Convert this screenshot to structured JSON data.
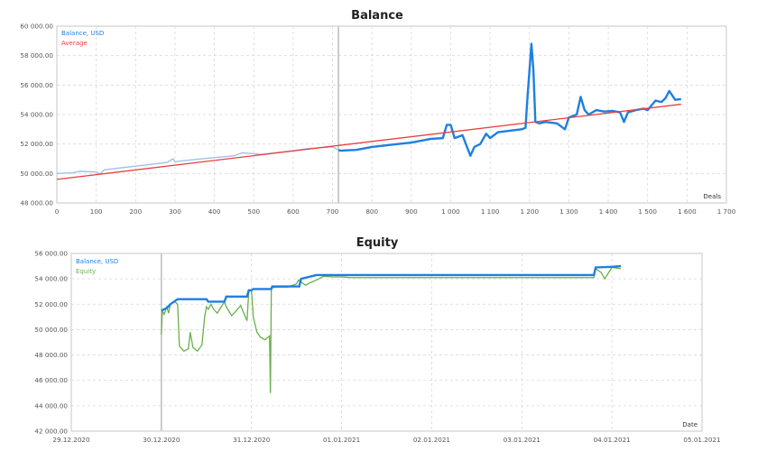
{
  "chart_data": [
    {
      "type": "line",
      "title": "Balance",
      "xlabel": "Deals",
      "ylabel": "",
      "xlim": [
        0,
        1700
      ],
      "ylim": [
        48000,
        60000
      ],
      "x_ticks": [
        "0",
        "100",
        "200",
        "300",
        "400",
        "500",
        "600",
        "700",
        "800",
        "900",
        "1 000",
        "1 100",
        "1 200",
        "1 300",
        "1 400",
        "1 500",
        "1 600",
        "1 700"
      ],
      "y_ticks": [
        "48 000.00",
        "50 000.00",
        "52 000.00",
        "54 000.00",
        "56 000.00",
        "58 000.00",
        "60 000.00"
      ],
      "grid": true,
      "legend": {
        "position": "top-left",
        "entries": [
          "Balance, USD",
          "Average"
        ]
      },
      "annotations": [
        "vertical separator at ~715 deals (in-sample / out-of-sample)"
      ],
      "series": [
        {
          "name": "Balance, USD",
          "color": "#1e7fe0",
          "x": [
            0,
            40,
            60,
            100,
            110,
            120,
            200,
            280,
            295,
            300,
            350,
            450,
            470,
            520,
            600,
            640,
            700,
            715,
            720,
            760,
            800,
            850,
            900,
            950,
            980,
            990,
            1000,
            1010,
            1030,
            1040,
            1050,
            1060,
            1075,
            1090,
            1100,
            1120,
            1150,
            1180,
            1190,
            1195,
            1200,
            1205,
            1210,
            1215,
            1225,
            1240,
            1270,
            1280,
            1290,
            1300,
            1320,
            1330,
            1340,
            1350,
            1370,
            1390,
            1410,
            1430,
            1440,
            1450,
            1470,
            1490,
            1500,
            1520,
            1535,
            1545,
            1555,
            1570,
            1585
          ],
          "y": [
            50000,
            50050,
            50150,
            50100,
            49950,
            50250,
            50500,
            50750,
            51000,
            50800,
            50950,
            51200,
            51400,
            51300,
            51550,
            51700,
            51800,
            51600,
            51550,
            51600,
            51800,
            51950,
            52100,
            52350,
            52400,
            53300,
            53300,
            52400,
            52600,
            51900,
            51200,
            51800,
            52000,
            52700,
            52400,
            52800,
            52900,
            53000,
            53100,
            55200,
            57000,
            58800,
            57000,
            53500,
            53400,
            53500,
            53400,
            53200,
            53000,
            53800,
            54000,
            55200,
            54300,
            54000,
            54300,
            54200,
            54250,
            54150,
            53500,
            54150,
            54300,
            54400,
            54300,
            54950,
            54850,
            55100,
            55600,
            55000,
            55050
          ]
        },
        {
          "name": "Average",
          "color": "#e84040",
          "x": [
            0,
            1585
          ],
          "y": [
            49600,
            54700
          ]
        }
      ]
    },
    {
      "type": "line",
      "title": "Equity",
      "xlabel": "Date",
      "ylabel": "",
      "x_ticks": [
        "29.12.2020",
        "30.12.2020",
        "31.12.2020",
        "01.01.2021",
        "02.01.2021",
        "03.01.2021",
        "04.01.2021",
        "05.01.2021"
      ],
      "xlim_days": [
        0,
        7
      ],
      "ylim": [
        42000,
        56000
      ],
      "y_ticks": [
        "42 000.00",
        "44 000.00",
        "46 000.00",
        "48 000.00",
        "50 000.00",
        "52 000.00",
        "54 000.00",
        "56 000.00"
      ],
      "grid": true,
      "legend": {
        "position": "top-left",
        "entries": [
          "Balance, USD",
          "Equity"
        ]
      },
      "series": [
        {
          "name": "Balance, USD",
          "color": "#1e7fe0",
          "x": [
            1.0,
            1.06,
            1.1,
            1.18,
            1.5,
            1.52,
            1.7,
            1.72,
            1.95,
            1.97,
            2.0,
            2.02,
            2.22,
            2.23,
            2.53,
            2.55,
            2.72,
            3.0,
            3.1,
            4.0,
            5.0,
            5.8,
            5.82,
            6.0,
            6.1
          ],
          "y": [
            51500,
            51700,
            52000,
            52400,
            52400,
            52200,
            52200,
            52600,
            52600,
            53100,
            53100,
            53200,
            53200,
            53400,
            53400,
            54000,
            54300,
            54300,
            54300,
            54300,
            54300,
            54300,
            54900,
            54950,
            55000
          ]
        },
        {
          "name": "Equity",
          "color": "#6ab04c",
          "x": [
            1.0,
            1.01,
            1.03,
            1.06,
            1.08,
            1.1,
            1.15,
            1.18,
            1.2,
            1.25,
            1.3,
            1.32,
            1.35,
            1.4,
            1.45,
            1.48,
            1.5,
            1.52,
            1.55,
            1.58,
            1.62,
            1.7,
            1.72,
            1.78,
            1.82,
            1.88,
            1.92,
            1.95,
            1.97,
            2.0,
            2.02,
            2.06,
            2.1,
            2.15,
            2.2,
            2.21,
            2.22,
            2.23,
            2.3,
            2.4,
            2.5,
            2.52,
            2.6,
            2.65,
            2.72,
            2.8,
            2.9,
            3.0,
            3.1,
            4.0,
            5.0,
            5.8,
            5.82,
            5.88,
            5.92,
            6.0,
            6.1
          ],
          "y": [
            49600,
            51500,
            51200,
            51800,
            51300,
            52000,
            52200,
            52000,
            48700,
            48300,
            48500,
            49800,
            48600,
            48300,
            48800,
            51000,
            51800,
            51600,
            52000,
            51600,
            51300,
            52200,
            51800,
            51100,
            51400,
            51900,
            51200,
            50700,
            53000,
            53100,
            51000,
            49800,
            49400,
            49200,
            49500,
            45000,
            53200,
            53300,
            53350,
            53350,
            53600,
            53900,
            53500,
            53700,
            53900,
            54200,
            54150,
            54150,
            54100,
            54100,
            54100,
            54100,
            54800,
            54500,
            54000,
            54900,
            54800
          ]
        }
      ],
      "annotations": [
        "vertical separator at 30.12.2020"
      ]
    }
  ],
  "balance_chart": {
    "title": "Balance",
    "xlabel": "Deals",
    "legend_balance": "Balance, USD",
    "legend_average": "Average"
  },
  "equity_chart": {
    "title": "Equity",
    "xlabel": "Date",
    "legend_balance": "Balance, USD",
    "legend_equity": "Equity"
  },
  "colors": {
    "balance": "#1e7fe0",
    "balance_light": "#9cc3e8",
    "average": "#e84040",
    "equity": "#6ab04c",
    "grid": "#d8d8d8",
    "frame": "#d0d0d0"
  }
}
